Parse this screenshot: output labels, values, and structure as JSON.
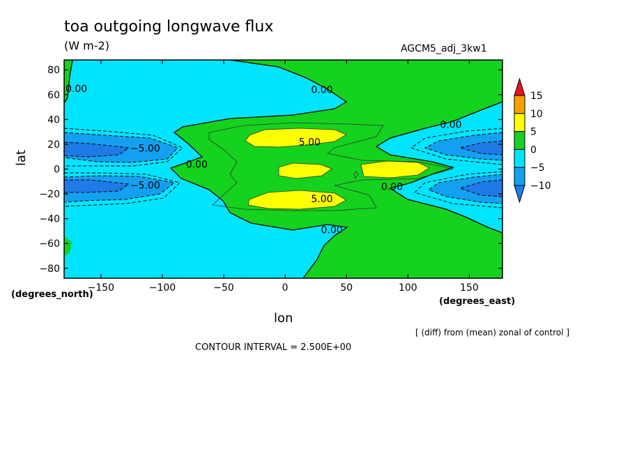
{
  "chart_data": {
    "type": "heatmap",
    "title": "toa outgoing longwave flux",
    "units": "(W m-2)",
    "dataset": "AGCM5_adj_3kw1",
    "xlabel": "lon",
    "ylabel": "lat",
    "x_unit_label": "(degrees_east)",
    "y_unit_label": "(degrees_north)",
    "note": "[ (diff) from (mean) zonal of control ]",
    "contour_interval_text": "CONTOUR INTERVAL = 2.500E+00",
    "xlim": [
      -180,
      177
    ],
    "ylim": [
      -88,
      88
    ],
    "x_ticks": [
      -150,
      -100,
      -50,
      0,
      50,
      100,
      150
    ],
    "y_ticks": [
      -80,
      -60,
      -40,
      -20,
      0,
      20,
      40,
      60,
      80
    ],
    "x_tick_labels": [
      "-150",
      "-100",
      "-50",
      "0",
      "50",
      "100",
      "150"
    ],
    "y_tick_labels": [
      "-80",
      "-60",
      "-40",
      "-20",
      "0",
      "20",
      "40",
      "60",
      "80"
    ],
    "colorbar": {
      "levels": [
        -10,
        -5,
        0,
        5,
        10,
        15
      ],
      "labels": [
        "-10",
        "-5",
        "0",
        "5",
        "10",
        "15"
      ],
      "colors": [
        "#1f7ae8",
        "#14a0f0",
        "#00e5ff",
        "#14d21e",
        "#ffff00",
        "#ff9f00",
        "#e6161e"
      ]
    },
    "contour_labels": [
      {
        "text": "0.00",
        "lon": -170,
        "lat": 65
      },
      {
        "text": "0.00",
        "lon": 30,
        "lat": 64
      },
      {
        "text": "0.00",
        "lon": 135,
        "lat": 36
      },
      {
        "text": "-5.00",
        "lon": -114,
        "lat": 17
      },
      {
        "text": "0.00",
        "lon": -72,
        "lat": 4
      },
      {
        "text": "5.00",
        "lon": 20,
        "lat": 22
      },
      {
        "text": "0.00",
        "lon": 87,
        "lat": -14
      },
      {
        "text": "-5.00",
        "lon": -114,
        "lat": -13
      },
      {
        "text": "5.00",
        "lon": 30,
        "lat": -24
      },
      {
        "text": "0.00",
        "lon": 38,
        "lat": -49
      }
    ]
  }
}
